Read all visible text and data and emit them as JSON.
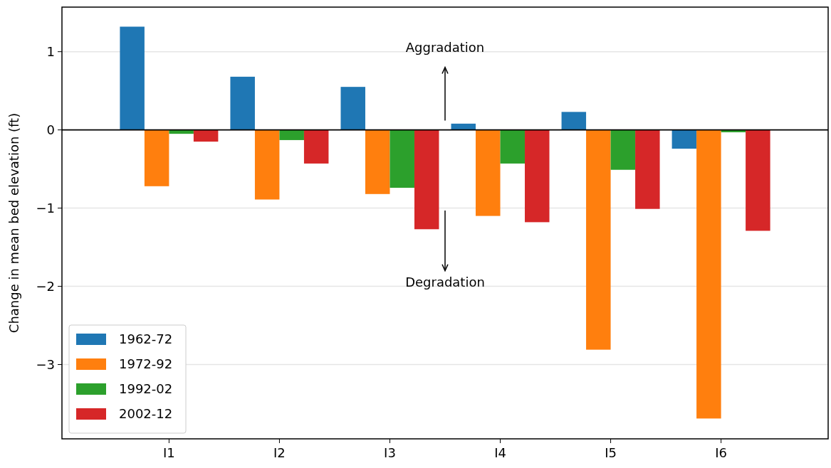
{
  "chart_data": {
    "type": "bar",
    "ylabel": "Change in mean bed elevation (ft)",
    "categories": [
      "I1",
      "I2",
      "I3",
      "I4",
      "I5",
      "I6"
    ],
    "series": [
      {
        "name": "1962-72",
        "color": "#1f77b4",
        "values": [
          1.32,
          0.68,
          0.55,
          0.08,
          0.23,
          -0.24
        ]
      },
      {
        "name": "1972-92",
        "color": "#ff7f0e",
        "values": [
          -0.72,
          -0.89,
          -0.82,
          -1.1,
          -2.81,
          -3.69
        ]
      },
      {
        "name": "1992-02",
        "color": "#2ca02c",
        "values": [
          -0.05,
          -0.13,
          -0.74,
          -0.43,
          -0.51,
          -0.03
        ]
      },
      {
        "name": "2002-12",
        "color": "#d62728",
        "values": [
          -0.15,
          -0.43,
          -1.27,
          -1.18,
          -1.01,
          -1.29
        ]
      }
    ],
    "ylim": [
      -3.95,
      1.57
    ],
    "yticks": [
      {
        "value": -3,
        "label": "−3"
      },
      {
        "value": -2,
        "label": "−2"
      },
      {
        "value": -1,
        "label": "−1"
      },
      0,
      1
    ],
    "ref_lines": [
      {
        "axis": "y",
        "value": 0,
        "color": "#000000"
      }
    ],
    "annotations": [
      "Aggradation",
      "Degradation"
    ],
    "grid": "y",
    "legend": "bottom left"
  }
}
